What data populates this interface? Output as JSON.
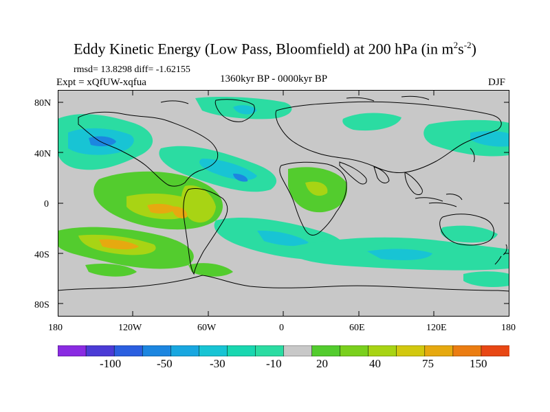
{
  "title": {
    "main": "Eddy Kinetic Energy (Low Pass, Bloomfield) at 200 hPa (in m",
    "sup1": "2",
    "mid": "s",
    "sup2": "-2",
    "end": ")"
  },
  "stats": "rmsd= 13.8298 diff= -1.62155",
  "experiment": "Expt = xQfUW-xqfua",
  "period": "1360kyr BP - 0000kyr BP",
  "season": "DJF",
  "lat_labels": [
    "80N",
    "40N",
    "0",
    "40S",
    "80S"
  ],
  "lon_labels": [
    "180",
    "120W",
    "60W",
    "0",
    "60E",
    "120E",
    "180"
  ],
  "colorbar": {
    "labels": [
      "-100",
      "-50",
      "-30",
      "-10",
      "20",
      "40",
      "75",
      "150"
    ],
    "colors": [
      "#8a2be2",
      "#4b3bd6",
      "#2b5fe0",
      "#1c86e0",
      "#19a7e0",
      "#18c4d4",
      "#19d7b0",
      "#2bdca2",
      "#c8c8c8",
      "#53cc2e",
      "#7ad01d",
      "#a8d414",
      "#d2c80f",
      "#e6a910",
      "#eb7d12",
      "#e84714"
    ]
  },
  "colors": {
    "land_bg": "#c8c8c8",
    "neg_light": "#2bdca2",
    "neg_mid": "#18c4d4",
    "neg_dark": "#1c86e0",
    "pos_light": "#53cc2e",
    "pos_mid": "#a8d414",
    "pos_dark": "#e6a910"
  }
}
